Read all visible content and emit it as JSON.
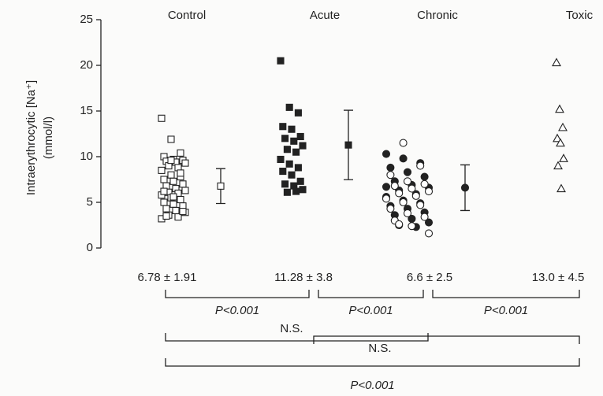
{
  "chart_data": {
    "type": "strip",
    "y_label": [
      "Intraerythrocytic [Na⁺]",
      "(mmol/l)"
    ],
    "ylim": [
      0,
      25
    ],
    "yticks": [
      0,
      5,
      10,
      15,
      20,
      25
    ],
    "groups": [
      {
        "name": "Control",
        "stats_label": "6.78 ± 1.91",
        "mean": 6.78,
        "sd": 1.91,
        "sets": [
          {
            "marker": "square-open",
            "values": [
              14.2,
              11.9,
              10.4,
              10,
              9.7,
              9.6,
              9.5,
              9.4,
              9.3,
              9.0,
              8.8,
              8.5,
              8.0,
              7.8,
              7.5,
              7.3,
              7.0,
              6.8,
              6.5,
              6.3,
              6.1,
              6.0,
              5.8,
              5.5,
              5.3,
              5.0,
              4.8,
              4.6,
              4.3,
              4.1,
              3.9,
              3.6,
              3.4,
              3.2,
              9.6,
              8.2,
              6.2,
              5.6,
              4.0,
              3.5
            ]
          }
        ]
      },
      {
        "name": "Acute",
        "stats_label": "11.28 ± 3.8",
        "mean": 11.28,
        "sd": 3.8,
        "sets": [
          {
            "marker": "square-filled",
            "values": [
              20.5,
              15.4,
              14.8,
              13.3,
              13.0,
              12.2,
              12.0,
              11.7,
              11.2,
              10.8,
              10.5,
              9.7,
              9.2,
              8.8,
              8.4,
              8.0,
              7.3,
              7.0,
              6.8,
              6.4,
              6.1,
              6.2
            ]
          }
        ]
      },
      {
        "name": "Chronic",
        "stats_label": "6.6 ± 2.5",
        "mean": 6.6,
        "sd": 2.5,
        "sets": [
          {
            "marker": "circle-filled",
            "values": [
              10.3,
              9.8,
              9.3,
              8.8,
              8.3,
              7.8,
              7.3,
              6.9,
              6.6,
              6.3,
              5.9,
              5.6,
              5.2,
              4.9,
              4.6,
              4.3,
              3.9,
              3.6,
              3.2,
              2.8,
              2.5,
              2.3,
              6.7
            ]
          },
          {
            "marker": "circle-open",
            "values": [
              11.5,
              9.0,
              8.0,
              7.3,
              7.0,
              6.8,
              6.5,
              6.2,
              6.0,
              5.7,
              5.4,
              5.0,
              4.7,
              4.3,
              3.8,
              3.4,
              3.0,
              2.4,
              1.6,
              2.6
            ]
          }
        ]
      },
      {
        "name": "Toxic",
        "stats_label": "13.0 ± 4.5",
        "sets": [
          {
            "marker": "triangle-open",
            "values": [
              20.3,
              15.2,
              13.2,
              12.0,
              11.5,
              9.8,
              9.0,
              6.5
            ]
          }
        ]
      }
    ],
    "comparisons": [
      {
        "from": 0,
        "to": 1,
        "label": "P<0.001"
      },
      {
        "from": 1,
        "to": 2,
        "label": "P<0.001"
      },
      {
        "from": 2,
        "to": 3,
        "label": "P<0.001"
      },
      {
        "from": 0,
        "to": 2,
        "label": "N.S."
      },
      {
        "from": 1,
        "to": 3,
        "label": "N.S."
      },
      {
        "from": 0,
        "to": 3,
        "label": "P<0.001"
      }
    ]
  }
}
